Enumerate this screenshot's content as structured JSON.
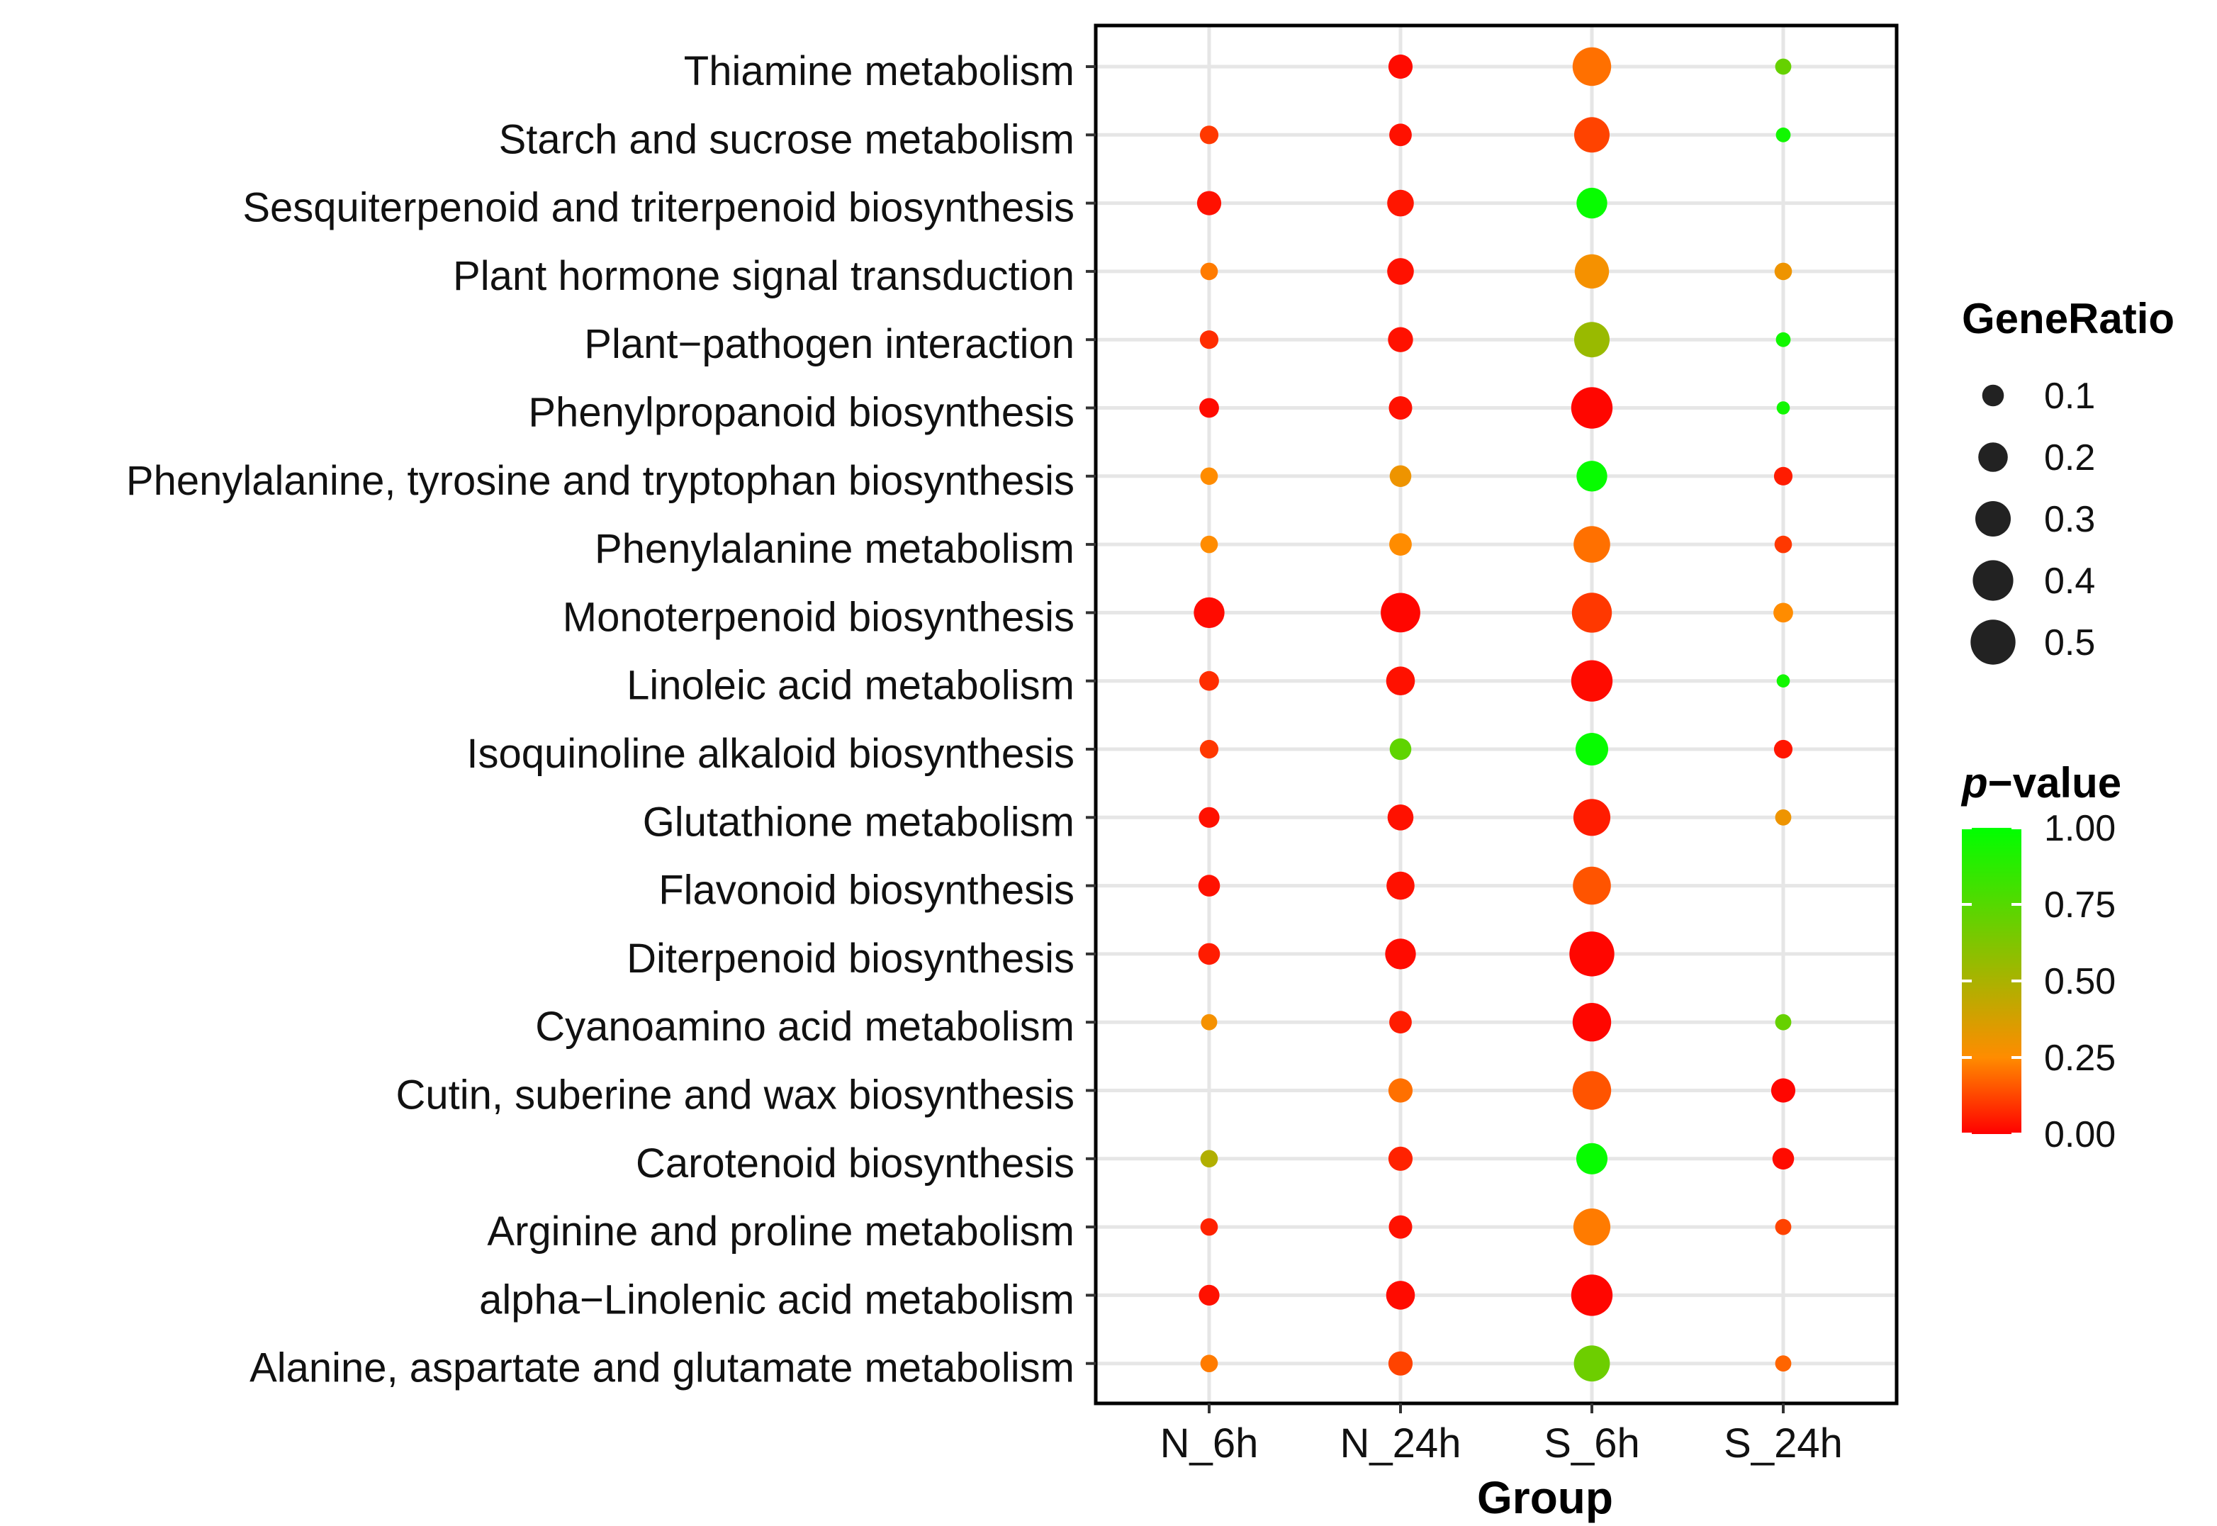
{
  "chart_data": {
    "type": "dot",
    "xlabel": "Group",
    "categories_x": [
      "N_6h",
      "N_24h",
      "S_6h",
      "S_24h"
    ],
    "categories_y": [
      "Thiamine metabolism",
      "Starch and sucrose metabolism",
      "Sesquiterpenoid and triterpenoid biosynthesis",
      "Plant hormone signal transduction",
      "Plant−pathogen interaction",
      "Phenylpropanoid biosynthesis",
      "Phenylalanine, tyrosine and tryptophan biosynthesis",
      "Phenylalanine metabolism",
      "Monoterpenoid biosynthesis",
      "Linoleic acid metabolism",
      "Isoquinoline alkaloid biosynthesis",
      "Glutathione metabolism",
      "Flavonoid biosynthesis",
      "Diterpenoid biosynthesis",
      "Cyanoamino acid metabolism",
      "Cutin, suberine and wax biosynthesis",
      "Carotenoid biosynthesis",
      "Arginine and proline metabolism",
      "alpha−Linolenic acid metabolism",
      "Alanine, aspartate and glutamate metabolism"
    ],
    "points": [
      {
        "y": "Thiamine metabolism",
        "x": "N_24h",
        "gene_ratio": 0.13,
        "p_value": 0.02
      },
      {
        "y": "Thiamine metabolism",
        "x": "S_6h",
        "gene_ratio": 0.36,
        "p_value": 0.2
      },
      {
        "y": "Thiamine metabolism",
        "x": "S_24h",
        "gene_ratio": 0.05,
        "p_value": 0.7
      },
      {
        "y": "Starch and sucrose metabolism",
        "x": "N_6h",
        "gene_ratio": 0.07,
        "p_value": 0.1
      },
      {
        "y": "Starch and sucrose metabolism",
        "x": "N_24h",
        "gene_ratio": 0.11,
        "p_value": 0.03
      },
      {
        "y": "Starch and sucrose metabolism",
        "x": "S_6h",
        "gene_ratio": 0.3,
        "p_value": 0.12
      },
      {
        "y": "Starch and sucrose metabolism",
        "x": "S_24h",
        "gene_ratio": 0.04,
        "p_value": 0.95
      },
      {
        "y": "Sesquiterpenoid and triterpenoid biosynthesis",
        "x": "N_6h",
        "gene_ratio": 0.13,
        "p_value": 0.03
      },
      {
        "y": "Sesquiterpenoid and triterpenoid biosynthesis",
        "x": "N_24h",
        "gene_ratio": 0.16,
        "p_value": 0.04
      },
      {
        "y": "Sesquiterpenoid and triterpenoid biosynthesis",
        "x": "S_6h",
        "gene_ratio": 0.22,
        "p_value": 0.98
      },
      {
        "y": "Plant hormone signal transduction",
        "x": "N_6h",
        "gene_ratio": 0.06,
        "p_value": 0.22
      },
      {
        "y": "Plant hormone signal transduction",
        "x": "N_24h",
        "gene_ratio": 0.16,
        "p_value": 0.03
      },
      {
        "y": "Plant hormone signal transduction",
        "x": "S_6h",
        "gene_ratio": 0.28,
        "p_value": 0.28
      },
      {
        "y": "Plant hormone signal transduction",
        "x": "S_24h",
        "gene_ratio": 0.06,
        "p_value": 0.3
      },
      {
        "y": "Plant−pathogen interaction",
        "x": "N_6h",
        "gene_ratio": 0.07,
        "p_value": 0.08
      },
      {
        "y": "Plant−pathogen interaction",
        "x": "N_24h",
        "gene_ratio": 0.14,
        "p_value": 0.03
      },
      {
        "y": "Plant−pathogen interaction",
        "x": "S_6h",
        "gene_ratio": 0.3,
        "p_value": 0.55
      },
      {
        "y": "Plant−pathogen interaction",
        "x": "S_24h",
        "gene_ratio": 0.04,
        "p_value": 0.95
      },
      {
        "y": "Phenylpropanoid biosynthesis",
        "x": "N_6h",
        "gene_ratio": 0.08,
        "p_value": 0.02
      },
      {
        "y": "Phenylpropanoid biosynthesis",
        "x": "N_24h",
        "gene_ratio": 0.12,
        "p_value": 0.03
      },
      {
        "y": "Phenylpropanoid biosynthesis",
        "x": "S_6h",
        "gene_ratio": 0.42,
        "p_value": 0.01
      },
      {
        "y": "Phenylpropanoid biosynthesis",
        "x": "S_24h",
        "gene_ratio": 0.03,
        "p_value": 0.95
      },
      {
        "y": "Phenylalanine, tyrosine and tryptophan biosynthesis",
        "x": "N_6h",
        "gene_ratio": 0.06,
        "p_value": 0.25
      },
      {
        "y": "Phenylalanine, tyrosine and tryptophan biosynthesis",
        "x": "N_24h",
        "gene_ratio": 0.1,
        "p_value": 0.3
      },
      {
        "y": "Phenylalanine, tyrosine and tryptophan biosynthesis",
        "x": "S_6h",
        "gene_ratio": 0.22,
        "p_value": 0.98
      },
      {
        "y": "Phenylalanine, tyrosine and tryptophan biosynthesis",
        "x": "S_24h",
        "gene_ratio": 0.07,
        "p_value": 0.05
      },
      {
        "y": "Phenylalanine metabolism",
        "x": "N_6h",
        "gene_ratio": 0.06,
        "p_value": 0.25
      },
      {
        "y": "Phenylalanine metabolism",
        "x": "N_24h",
        "gene_ratio": 0.11,
        "p_value": 0.25
      },
      {
        "y": "Phenylalanine metabolism",
        "x": "S_6h",
        "gene_ratio": 0.32,
        "p_value": 0.2
      },
      {
        "y": "Phenylalanine metabolism",
        "x": "S_24h",
        "gene_ratio": 0.06,
        "p_value": 0.1
      },
      {
        "y": "Monoterpenoid biosynthesis",
        "x": "N_6h",
        "gene_ratio": 0.22,
        "p_value": 0.02
      },
      {
        "y": "Monoterpenoid biosynthesis",
        "x": "N_24h",
        "gene_ratio": 0.38,
        "p_value": 0.01
      },
      {
        "y": "Monoterpenoid biosynthesis",
        "x": "S_6h",
        "gene_ratio": 0.39,
        "p_value": 0.1
      },
      {
        "y": "Monoterpenoid biosynthesis",
        "x": "S_24h",
        "gene_ratio": 0.08,
        "p_value": 0.25
      },
      {
        "y": "Linoleic acid metabolism",
        "x": "N_6h",
        "gene_ratio": 0.08,
        "p_value": 0.08
      },
      {
        "y": "Linoleic acid metabolism",
        "x": "N_24h",
        "gene_ratio": 0.19,
        "p_value": 0.03
      },
      {
        "y": "Linoleic acid metabolism",
        "x": "S_6h",
        "gene_ratio": 0.42,
        "p_value": 0.02
      },
      {
        "y": "Linoleic acid metabolism",
        "x": "S_24h",
        "gene_ratio": 0.03,
        "p_value": 0.95
      },
      {
        "y": "Isoquinoline alkaloid biosynthesis",
        "x": "N_6h",
        "gene_ratio": 0.07,
        "p_value": 0.1
      },
      {
        "y": "Isoquinoline alkaloid biosynthesis",
        "x": "N_24h",
        "gene_ratio": 0.1,
        "p_value": 0.72
      },
      {
        "y": "Isoquinoline alkaloid biosynthesis",
        "x": "S_6h",
        "gene_ratio": 0.25,
        "p_value": 0.98
      },
      {
        "y": "Isoquinoline alkaloid biosynthesis",
        "x": "S_24h",
        "gene_ratio": 0.07,
        "p_value": 0.04
      },
      {
        "y": "Glutathione metabolism",
        "x": "N_6h",
        "gene_ratio": 0.09,
        "p_value": 0.03
      },
      {
        "y": "Glutathione metabolism",
        "x": "N_24h",
        "gene_ratio": 0.15,
        "p_value": 0.03
      },
      {
        "y": "Glutathione metabolism",
        "x": "S_6h",
        "gene_ratio": 0.33,
        "p_value": 0.05
      },
      {
        "y": "Glutathione metabolism",
        "x": "S_24h",
        "gene_ratio": 0.05,
        "p_value": 0.3
      },
      {
        "y": "Flavonoid biosynthesis",
        "x": "N_6h",
        "gene_ratio": 0.1,
        "p_value": 0.03
      },
      {
        "y": "Flavonoid biosynthesis",
        "x": "N_24h",
        "gene_ratio": 0.18,
        "p_value": 0.03
      },
      {
        "y": "Flavonoid biosynthesis",
        "x": "S_6h",
        "gene_ratio": 0.35,
        "p_value": 0.15
      },
      {
        "y": "Diterpenoid biosynthesis",
        "x": "N_6h",
        "gene_ratio": 0.1,
        "p_value": 0.05
      },
      {
        "y": "Diterpenoid biosynthesis",
        "x": "N_24h",
        "gene_ratio": 0.22,
        "p_value": 0.02
      },
      {
        "y": "Diterpenoid biosynthesis",
        "x": "S_6h",
        "gene_ratio": 0.5,
        "p_value": 0.01
      },
      {
        "y": "Cyanoamino acid metabolism",
        "x": "N_6h",
        "gene_ratio": 0.05,
        "p_value": 0.28
      },
      {
        "y": "Cyanoamino acid metabolism",
        "x": "N_24h",
        "gene_ratio": 0.11,
        "p_value": 0.05
      },
      {
        "y": "Cyanoamino acid metabolism",
        "x": "S_6h",
        "gene_ratio": 0.36,
        "p_value": 0.01
      },
      {
        "y": "Cyanoamino acid metabolism",
        "x": "S_24h",
        "gene_ratio": 0.05,
        "p_value": 0.7
      },
      {
        "y": "Cutin, suberine and wax biosynthesis",
        "x": "N_24h",
        "gene_ratio": 0.13,
        "p_value": 0.2
      },
      {
        "y": "Cutin, suberine and wax biosynthesis",
        "x": "S_6h",
        "gene_ratio": 0.36,
        "p_value": 0.15
      },
      {
        "y": "Cutin, suberine and wax biosynthesis",
        "x": "S_24h",
        "gene_ratio": 0.13,
        "p_value": 0.01
      },
      {
        "y": "Carotenoid biosynthesis",
        "x": "N_6h",
        "gene_ratio": 0.06,
        "p_value": 0.48
      },
      {
        "y": "Carotenoid biosynthesis",
        "x": "N_24h",
        "gene_ratio": 0.13,
        "p_value": 0.06
      },
      {
        "y": "Carotenoid biosynthesis",
        "x": "S_6h",
        "gene_ratio": 0.23,
        "p_value": 0.98
      },
      {
        "y": "Carotenoid biosynthesis",
        "x": "S_24h",
        "gene_ratio": 0.1,
        "p_value": 0.02
      },
      {
        "y": "Arginine and proline metabolism",
        "x": "N_6h",
        "gene_ratio": 0.06,
        "p_value": 0.06
      },
      {
        "y": "Arginine and proline metabolism",
        "x": "N_24h",
        "gene_ratio": 0.12,
        "p_value": 0.03
      },
      {
        "y": "Arginine and proline metabolism",
        "x": "S_6h",
        "gene_ratio": 0.33,
        "p_value": 0.22
      },
      {
        "y": "Arginine and proline metabolism",
        "x": "S_24h",
        "gene_ratio": 0.05,
        "p_value": 0.12
      },
      {
        "y": "alpha−Linolenic acid metabolism",
        "x": "N_6h",
        "gene_ratio": 0.09,
        "p_value": 0.03
      },
      {
        "y": "alpha−Linolenic acid metabolism",
        "x": "N_24h",
        "gene_ratio": 0.19,
        "p_value": 0.02
      },
      {
        "y": "alpha−Linolenic acid metabolism",
        "x": "S_6h",
        "gene_ratio": 0.42,
        "p_value": 0.01
      },
      {
        "y": "Alanine, aspartate and glutamate metabolism",
        "x": "N_6h",
        "gene_ratio": 0.06,
        "p_value": 0.22
      },
      {
        "y": "Alanine, aspartate and glutamate metabolism",
        "x": "N_24h",
        "gene_ratio": 0.13,
        "p_value": 0.12
      },
      {
        "y": "Alanine, aspartate and glutamate metabolism",
        "x": "S_6h",
        "gene_ratio": 0.31,
        "p_value": 0.68
      },
      {
        "y": "Alanine, aspartate and glutamate metabolism",
        "x": "S_24h",
        "gene_ratio": 0.05,
        "p_value": 0.18
      }
    ],
    "size_legend": {
      "title": "GeneRatio",
      "breaks": [
        0.1,
        0.2,
        0.3,
        0.4,
        0.5
      ],
      "labels": [
        "0.1",
        "0.2",
        "0.3",
        "0.4",
        "0.5"
      ]
    },
    "color_legend": {
      "title_italic": "p",
      "title_rest": "−value",
      "range": [
        0,
        1
      ],
      "low_color": "#ff0000",
      "mid_color": "#ff8c00",
      "high_color": "#00ff00",
      "breaks": [
        0,
        0.25,
        0.5,
        0.75,
        1
      ],
      "labels": [
        "0.00",
        "0.25",
        "0.50",
        "0.75",
        "1.00"
      ]
    },
    "grid": true
  }
}
